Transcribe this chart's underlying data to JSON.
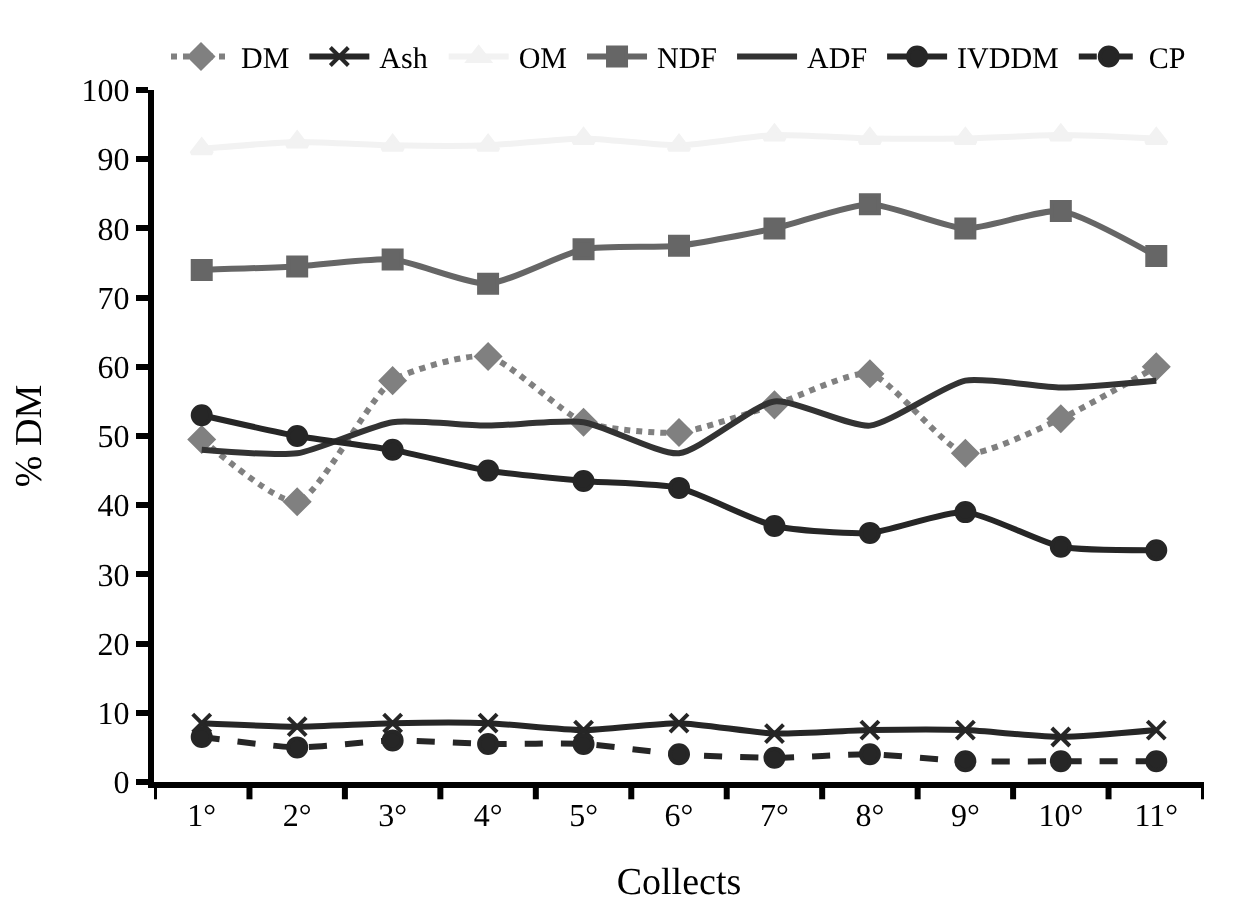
{
  "chart_data": {
    "type": "line",
    "xlabel": "Collects",
    "ylabel": "% DM",
    "categories": [
      "1°",
      "2°",
      "3°",
      "4°",
      "5°",
      "6°",
      "7°",
      "8°",
      "9°",
      "10°",
      "11°"
    ],
    "series": [
      {
        "name": "DM",
        "color": "#808080",
        "marker": "diamond",
        "line_style": "dotted",
        "values": [
          49.5,
          40.5,
          58,
          61.5,
          52,
          50.5,
          54.5,
          59,
          47.5,
          52.5,
          60
        ]
      },
      {
        "name": "Ash",
        "color": "#262626",
        "marker": "cross",
        "line_style": "solid",
        "values": [
          8.5,
          8,
          8.5,
          8.5,
          7.5,
          8.5,
          7,
          7.5,
          7.5,
          6.5,
          7.5
        ]
      },
      {
        "name": "OM",
        "color": "#f2f2f2",
        "marker": "triangle",
        "line_style": "solid",
        "values": [
          91.5,
          92.5,
          92,
          92,
          93,
          92,
          93.5,
          93,
          93,
          93.5,
          93
        ]
      },
      {
        "name": "NDF",
        "color": "#666666",
        "marker": "square",
        "line_style": "solid",
        "values": [
          74,
          74.5,
          75.5,
          72,
          77,
          77.5,
          80,
          83.5,
          80,
          82.5,
          76
        ]
      },
      {
        "name": "ADF",
        "color": "#333333",
        "marker": "none",
        "line_style": "solid",
        "values": [
          48,
          47.5,
          52,
          51.5,
          52,
          47.5,
          55,
          51.5,
          58,
          57,
          58
        ]
      },
      {
        "name": "IVDDM",
        "color": "#262626",
        "marker": "circle",
        "line_style": "solid",
        "values": [
          53,
          50,
          48,
          45,
          43.5,
          42.5,
          37,
          36,
          39,
          34,
          33.5
        ]
      },
      {
        "name": "CP",
        "color": "#262626",
        "marker": "circle",
        "line_style": "dashed",
        "values": [
          6.5,
          5,
          6,
          5.5,
          5.5,
          4,
          3.5,
          4,
          3,
          3,
          3
        ]
      }
    ],
    "ylim": [
      0,
      100
    ],
    "yticks": [
      0,
      10,
      20,
      30,
      40,
      50,
      60,
      70,
      80,
      90,
      100
    ],
    "legend": "top"
  }
}
